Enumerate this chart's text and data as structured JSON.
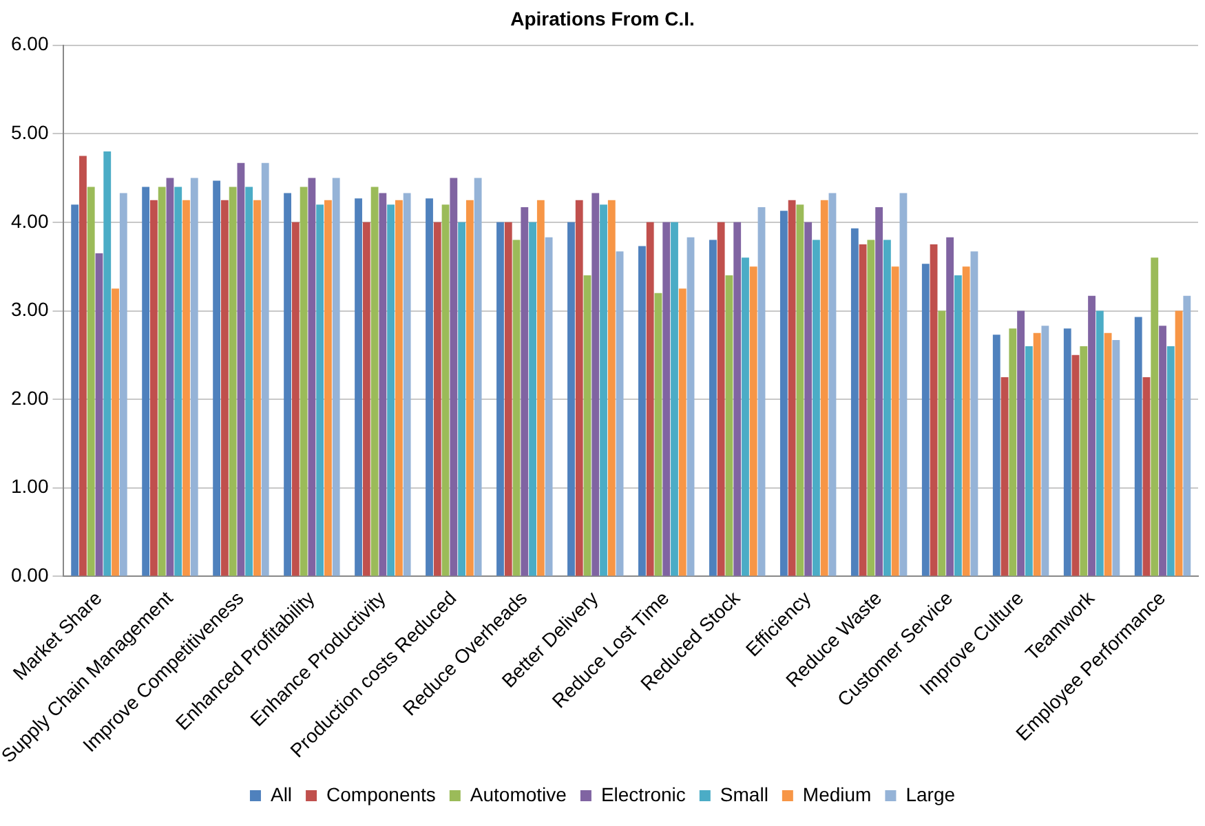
{
  "chart_data": {
    "type": "bar",
    "title": "Apirations From C.I.",
    "categories": [
      "Market Share",
      "Supply Chain Management",
      "Improve Competitiveness",
      "Enhanced Profitability",
      "Enhance Productivity",
      "Production costs Reduced",
      "Reduce Overheads",
      "Better Delivery",
      "Reduce Lost Time",
      "Reduced Stock",
      "Efficiency",
      "Reduce Waste",
      "Customer Service",
      "Improve Culture",
      "Teamwork",
      "Employee Performance"
    ],
    "series": [
      {
        "name": "All",
        "color": "#4f81bd",
        "values": [
          4.2,
          4.4,
          4.47,
          4.33,
          4.27,
          4.27,
          4.0,
          4.0,
          3.73,
          3.8,
          4.13,
          3.93,
          3.53,
          2.73,
          2.8,
          2.93
        ]
      },
      {
        "name": "Components",
        "color": "#c0504d",
        "values": [
          4.75,
          4.25,
          4.25,
          4.0,
          4.0,
          4.0,
          4.0,
          4.25,
          4.0,
          4.0,
          4.25,
          3.75,
          3.75,
          2.25,
          2.5,
          2.25
        ]
      },
      {
        "name": "Automotive",
        "color": "#9bbb59",
        "values": [
          4.4,
          4.4,
          4.4,
          4.4,
          4.4,
          4.2,
          3.8,
          3.4,
          3.2,
          3.4,
          4.2,
          3.8,
          3.0,
          2.8,
          2.6,
          3.6
        ]
      },
      {
        "name": "Electronic",
        "color": "#8064a2",
        "values": [
          3.65,
          4.5,
          4.67,
          4.5,
          4.33,
          4.5,
          4.17,
          4.33,
          4.0,
          4.0,
          4.0,
          4.17,
          3.83,
          3.0,
          3.17,
          2.83
        ]
      },
      {
        "name": "Small",
        "color": "#4bacc6",
        "values": [
          4.8,
          4.4,
          4.4,
          4.2,
          4.2,
          4.0,
          4.0,
          4.2,
          4.0,
          3.6,
          3.8,
          3.8,
          3.4,
          2.6,
          3.0,
          2.6
        ]
      },
      {
        "name": "Medium",
        "color": "#f79646",
        "values": [
          3.25,
          4.25,
          4.25,
          4.25,
          4.25,
          4.25,
          4.25,
          4.25,
          3.25,
          3.5,
          4.25,
          3.5,
          3.5,
          2.75,
          2.75,
          3.0
        ]
      },
      {
        "name": "Large",
        "color": "#95b3d7",
        "values": [
          4.33,
          4.5,
          4.67,
          4.5,
          4.33,
          4.5,
          3.83,
          3.67,
          3.83,
          4.17,
          4.33,
          4.33,
          3.67,
          2.83,
          2.67,
          3.17
        ]
      }
    ],
    "ylim": [
      0,
      6
    ],
    "yticks": [
      {
        "value": 0,
        "label": "0.00"
      },
      {
        "value": 1,
        "label": "1.00"
      },
      {
        "value": 2,
        "label": "2.00"
      },
      {
        "value": 3,
        "label": "3.00"
      },
      {
        "value": 4,
        "label": "4.00"
      },
      {
        "value": 5,
        "label": "5.00"
      },
      {
        "value": 6,
        "label": "6.00"
      }
    ],
    "grid": "y",
    "legend": "bottom"
  }
}
